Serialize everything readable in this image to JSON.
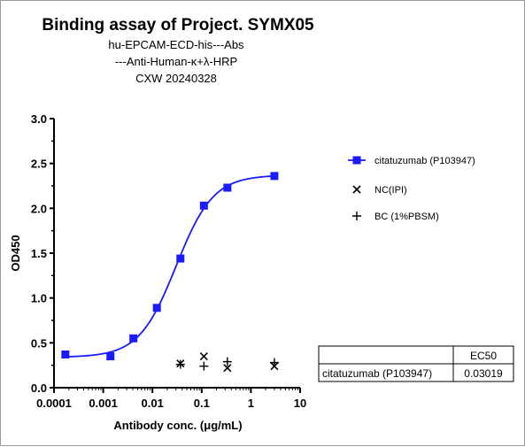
{
  "chart_data": {
    "type": "scatter",
    "title": "Binding assay of  Project. SYMX05",
    "subtitle_lines": [
      "hu-EPCAM-ECD-his---Abs",
      "---Anti-Human-κ+λ-HRP",
      "CXW   20240328"
    ],
    "xlabel": "Antibody conc. (μg/mL)",
    "ylabel": "OD450",
    "x_scale": "log",
    "xlim": [
      0.0001,
      10
    ],
    "ylim": [
      0,
      3.0
    ],
    "x_ticks": [
      0.0001,
      0.001,
      0.01,
      0.1,
      1,
      10
    ],
    "x_tick_labels": [
      "0.0001",
      "0.001",
      "0.01",
      "0.1",
      "1",
      "10"
    ],
    "y_ticks": [
      0,
      0.5,
      1.0,
      1.5,
      2.0,
      2.5,
      3.0
    ],
    "y_tick_labels": [
      "0.0",
      "0.5",
      "1.0",
      "1.5",
      "2.0",
      "2.5",
      "3.0"
    ],
    "series": [
      {
        "name": "citatuzumab  (P103947)",
        "marker": "square",
        "color": "#1a1aff",
        "x": [
          0.00017,
          0.0014,
          0.0041,
          0.0123,
          0.037,
          0.111,
          0.333,
          3.0
        ],
        "y": [
          0.37,
          0.35,
          0.55,
          0.89,
          1.44,
          2.03,
          2.23,
          2.36
        ],
        "fit": {
          "bottom": 0.34,
          "top": 2.37,
          "ec50": 0.03019,
          "hill": 1.15
        }
      },
      {
        "name": "NC(IPI)",
        "marker": "x",
        "color": "#000000",
        "x": [
          0.037,
          0.111,
          0.333,
          3.0
        ],
        "y": [
          0.27,
          0.35,
          0.22,
          0.24
        ]
      },
      {
        "name": "BC (1%PBSM)",
        "marker": "plus",
        "color": "#000000",
        "x": [
          0.037,
          0.111,
          0.333,
          3.0
        ],
        "y": [
          0.26,
          0.24,
          0.29,
          0.28
        ]
      }
    ],
    "legend_position": "right",
    "table": {
      "header": "EC50",
      "rows": [
        {
          "label": "citatuzumab  (P103947)",
          "value": "0.03019"
        }
      ]
    }
  }
}
